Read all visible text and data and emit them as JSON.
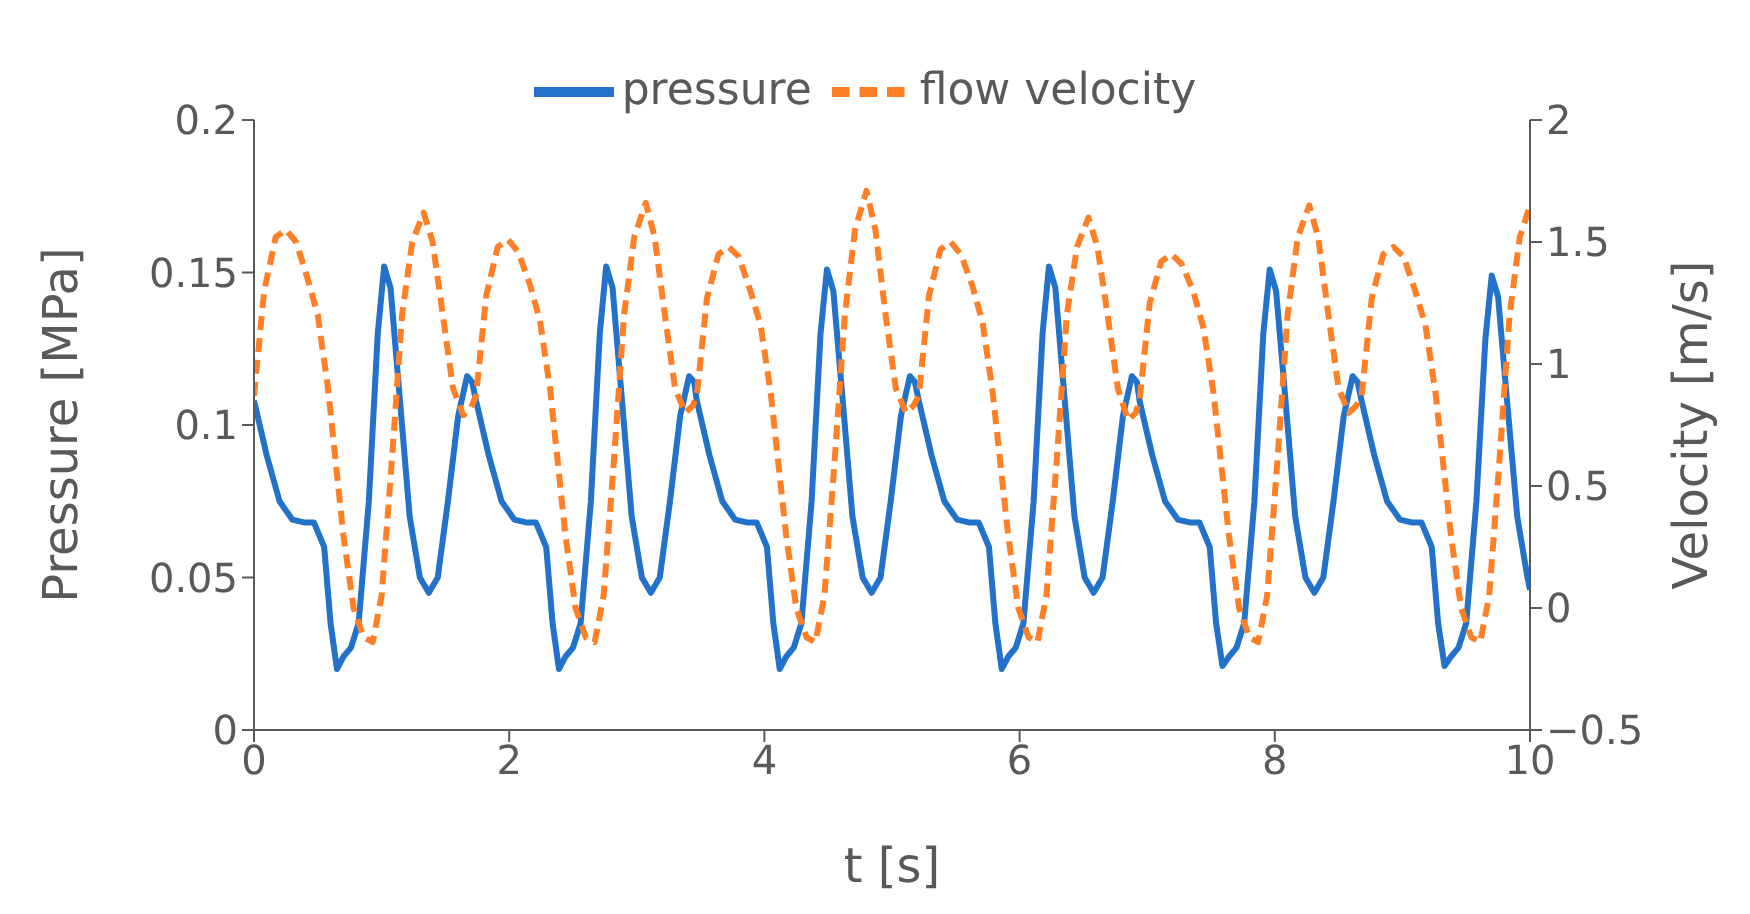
{
  "chart_data": {
    "type": "line",
    "xlabel": "t [s]",
    "ylabel": "Pressure [MPa]",
    "y2label": "Velocity [m/s]",
    "xlim": [
      0,
      10
    ],
    "xticks": [
      0,
      2,
      4,
      6,
      8,
      10
    ],
    "ylim": [
      0,
      0.2
    ],
    "yticks": [
      0,
      0.05,
      0.1,
      0.15,
      0.2
    ],
    "y2lim": [
      -0.5,
      2
    ],
    "y2ticks": [
      {
        "value": -0.5,
        "label": "−0.5"
      },
      0,
      0.5,
      1,
      1.5,
      2
    ],
    "legend": "top",
    "marker": "none",
    "series": [
      {
        "name": "pressure",
        "color": "#2272c9",
        "line_style": "solid",
        "x": [
          0,
          0.1,
          0.2,
          0.3,
          0.4,
          0.47,
          0.55,
          0.6,
          0.65,
          0.7,
          0.76,
          0.82,
          0.9,
          0.97,
          1.02,
          1.07,
          1.14,
          1.22,
          1.3,
          1.37,
          1.44,
          1.52,
          1.6,
          1.67,
          1.71,
          1.74,
          1.84,
          1.94,
          2.04,
          2.14,
          2.21,
          2.29,
          2.34,
          2.39,
          2.44,
          2.5,
          2.56,
          2.64,
          2.71,
          2.76,
          2.81,
          2.88,
          2.96,
          3.04,
          3.11,
          3.18,
          3.26,
          3.34,
          3.41,
          3.45,
          3.47,
          3.57,
          3.67,
          3.77,
          3.87,
          3.94,
          4.02,
          4.07,
          4.12,
          4.17,
          4.23,
          4.29,
          4.37,
          4.44,
          4.49,
          4.54,
          4.61,
          4.69,
          4.77,
          4.84,
          4.91,
          4.99,
          5.07,
          5.14,
          5.18,
          5.21,
          5.31,
          5.41,
          5.51,
          5.61,
          5.68,
          5.76,
          5.81,
          5.86,
          5.91,
          5.97,
          6.03,
          6.11,
          6.18,
          6.23,
          6.28,
          6.35,
          6.43,
          6.51,
          6.58,
          6.65,
          6.73,
          6.81,
          6.88,
          6.92,
          6.94,
          7.04,
          7.14,
          7.24,
          7.34,
          7.41,
          7.49,
          7.54,
          7.59,
          7.64,
          7.7,
          7.76,
          7.84,
          7.91,
          7.96,
          8.01,
          8.08,
          8.16,
          8.24,
          8.31,
          8.38,
          8.46,
          8.54,
          8.61,
          8.65,
          8.68,
          8.78,
          8.88,
          8.98,
          9.08,
          9.15,
          9.23,
          9.28,
          9.33,
          9.38,
          9.44,
          9.5,
          9.58,
          9.65,
          9.7,
          9.75,
          9.82,
          9.9,
          9.98,
          10
        ],
        "values": [
          0.108,
          0.09,
          0.075,
          0.069,
          0.068,
          0.068,
          0.06,
          0.035,
          0.02,
          0.024,
          0.027,
          0.035,
          0.075,
          0.13,
          0.152,
          0.145,
          0.11,
          0.07,
          0.05,
          0.045,
          0.05,
          0.075,
          0.103,
          0.116,
          0.114,
          0.108,
          0.09,
          0.075,
          0.069,
          0.068,
          0.068,
          0.06,
          0.035,
          0.02,
          0.024,
          0.027,
          0.035,
          0.075,
          0.13,
          0.152,
          0.145,
          0.11,
          0.07,
          0.05,
          0.045,
          0.05,
          0.075,
          0.103,
          0.116,
          0.114,
          0.108,
          0.09,
          0.075,
          0.069,
          0.068,
          0.068,
          0.06,
          0.035,
          0.02,
          0.024,
          0.027,
          0.035,
          0.075,
          0.13,
          0.151,
          0.144,
          0.11,
          0.07,
          0.05,
          0.045,
          0.05,
          0.075,
          0.103,
          0.116,
          0.114,
          0.108,
          0.09,
          0.075,
          0.069,
          0.068,
          0.068,
          0.06,
          0.035,
          0.02,
          0.024,
          0.027,
          0.035,
          0.075,
          0.13,
          0.152,
          0.145,
          0.11,
          0.07,
          0.05,
          0.045,
          0.05,
          0.075,
          0.103,
          0.116,
          0.114,
          0.108,
          0.09,
          0.075,
          0.069,
          0.068,
          0.068,
          0.06,
          0.035,
          0.021,
          0.024,
          0.027,
          0.035,
          0.075,
          0.13,
          0.151,
          0.144,
          0.11,
          0.07,
          0.05,
          0.045,
          0.05,
          0.075,
          0.103,
          0.116,
          0.114,
          0.108,
          0.09,
          0.075,
          0.069,
          0.068,
          0.068,
          0.06,
          0.035,
          0.021,
          0.024,
          0.027,
          0.035,
          0.075,
          0.128,
          0.149,
          0.142,
          0.108,
          0.07,
          0.05,
          0.046
        ]
      },
      {
        "name": "flow velocity",
        "color": "#ff7f27",
        "line_style": "dashed",
        "axis": "y2",
        "x": [
          0,
          0.08,
          0.17,
          0.25,
          0.33,
          0.42,
          0.5,
          0.58,
          0.7,
          0.78,
          0.86,
          0.93,
          1.0,
          1.08,
          1.16,
          1.24,
          1.33,
          1.4,
          1.48,
          1.56,
          1.64,
          1.7,
          1.74,
          1.82,
          1.91,
          1.99,
          2.07,
          2.16,
          2.24,
          2.32,
          2.44,
          2.52,
          2.6,
          2.67,
          2.74,
          2.82,
          2.9,
          2.98,
          3.07,
          3.14,
          3.22,
          3.3,
          3.38,
          3.44,
          3.47,
          3.55,
          3.64,
          3.72,
          3.8,
          3.89,
          3.97,
          4.05,
          4.17,
          4.25,
          4.33,
          4.4,
          4.47,
          4.55,
          4.63,
          4.71,
          4.8,
          4.87,
          4.95,
          5.03,
          5.11,
          5.17,
          5.21,
          5.29,
          5.38,
          5.46,
          5.54,
          5.63,
          5.71,
          5.79,
          5.91,
          5.99,
          6.07,
          6.14,
          6.21,
          6.29,
          6.37,
          6.45,
          6.54,
          6.61,
          6.69,
          6.77,
          6.85,
          6.91,
          6.94,
          7.02,
          7.11,
          7.19,
          7.27,
          7.36,
          7.44,
          7.52,
          7.64,
          7.72,
          7.8,
          7.87,
          7.94,
          8.02,
          8.1,
          8.18,
          8.27,
          8.34,
          8.42,
          8.5,
          8.58,
          8.64,
          8.68,
          8.76,
          8.85,
          8.93,
          9.01,
          9.1,
          9.18,
          9.26,
          9.38,
          9.46,
          9.54,
          9.61,
          9.68,
          9.76,
          9.84,
          9.92,
          10
        ],
        "values": [
          0.87,
          1.3,
          1.52,
          1.55,
          1.5,
          1.35,
          1.2,
          0.9,
          0.3,
          0,
          -0.12,
          -0.14,
          0.05,
          0.6,
          1.2,
          1.5,
          1.62,
          1.5,
          1.2,
          0.9,
          0.79,
          0.82,
          0.87,
          1.28,
          1.48,
          1.51,
          1.46,
          1.33,
          1.18,
          0.9,
          0.3,
          0,
          -0.12,
          -0.14,
          0.05,
          0.6,
          1.2,
          1.52,
          1.66,
          1.52,
          1.2,
          0.9,
          0.8,
          0.83,
          0.87,
          1.27,
          1.45,
          1.48,
          1.44,
          1.3,
          1.16,
          0.88,
          0.3,
          0,
          -0.12,
          -0.14,
          0.05,
          0.6,
          1.2,
          1.55,
          1.71,
          1.55,
          1.2,
          0.9,
          0.8,
          0.83,
          0.87,
          1.28,
          1.47,
          1.5,
          1.45,
          1.32,
          1.17,
          0.88,
          0.3,
          0,
          -0.12,
          -0.14,
          0.05,
          0.6,
          1.2,
          1.48,
          1.6,
          1.48,
          1.2,
          0.9,
          0.77,
          0.8,
          0.85,
          1.25,
          1.42,
          1.45,
          1.41,
          1.3,
          1.15,
          0.88,
          0.3,
          0,
          -0.12,
          -0.14,
          0.05,
          0.6,
          1.2,
          1.52,
          1.65,
          1.52,
          1.2,
          0.9,
          0.8,
          0.83,
          0.87,
          1.27,
          1.45,
          1.48,
          1.44,
          1.3,
          1.16,
          0.88,
          0.3,
          0,
          -0.12,
          -0.14,
          0.05,
          0.6,
          1.2,
          1.52,
          1.65
        ]
      }
    ]
  }
}
